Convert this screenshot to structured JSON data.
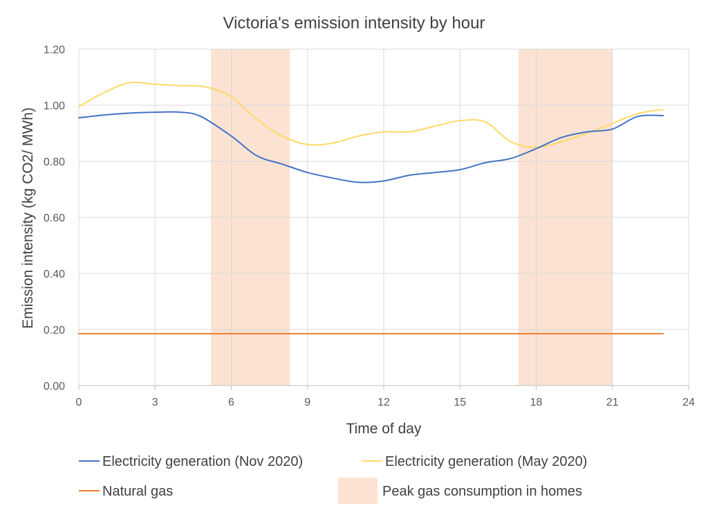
{
  "chart_data": {
    "type": "line",
    "title": "Victoria's emission intensity by hour",
    "xlabel": "Time of day",
    "ylabel": "Emission intensity (kg CO2/ MWh)",
    "xlim": [
      0,
      24
    ],
    "ylim": [
      0,
      1.2
    ],
    "x_ticks": [
      "0",
      "3",
      "6",
      "9",
      "12",
      "15",
      "18",
      "21",
      "24"
    ],
    "y_ticks": [
      "0.00",
      "0.20",
      "0.40",
      "0.60",
      "0.80",
      "1.00",
      "1.20"
    ],
    "grid": true,
    "legend_position": "bottom",
    "shaded_regions": {
      "name": "Peak gas consumption in homes",
      "color": "#F8CBAD",
      "ranges": [
        [
          5.2,
          8.3
        ],
        [
          17.3,
          21.0
        ]
      ]
    },
    "series": [
      {
        "name": "Electricity generation (Nov 2020)",
        "color": "#4472C4",
        "x": [
          0,
          1,
          2,
          3,
          4,
          4.8,
          6,
          7,
          8,
          9,
          10,
          11,
          12,
          13,
          14,
          15,
          16,
          17,
          18,
          19,
          20,
          21,
          22,
          23
        ],
        "y": [
          0.955,
          0.965,
          0.972,
          0.975,
          0.975,
          0.96,
          0.89,
          0.82,
          0.79,
          0.76,
          0.74,
          0.725,
          0.73,
          0.75,
          0.76,
          0.77,
          0.795,
          0.81,
          0.845,
          0.885,
          0.905,
          0.915,
          0.96,
          0.963
        ]
      },
      {
        "name": "Electricity generation (May 2020)",
        "color": "#FFD966",
        "x": [
          0,
          1,
          2,
          3,
          4,
          5,
          6,
          7,
          8,
          9,
          10,
          11,
          12,
          13,
          14,
          15,
          16,
          17,
          18,
          19,
          20,
          21,
          22,
          23
        ],
        "y": [
          0.995,
          1.045,
          1.08,
          1.075,
          1.07,
          1.065,
          1.03,
          0.95,
          0.89,
          0.86,
          0.865,
          0.89,
          0.905,
          0.905,
          0.925,
          0.945,
          0.94,
          0.87,
          0.85,
          0.87,
          0.9,
          0.935,
          0.97,
          0.985
        ]
      },
      {
        "name": "Natural gas",
        "color": "#ED7D31",
        "x": [
          0,
          23
        ],
        "y": [
          0.185,
          0.185
        ]
      }
    ]
  }
}
